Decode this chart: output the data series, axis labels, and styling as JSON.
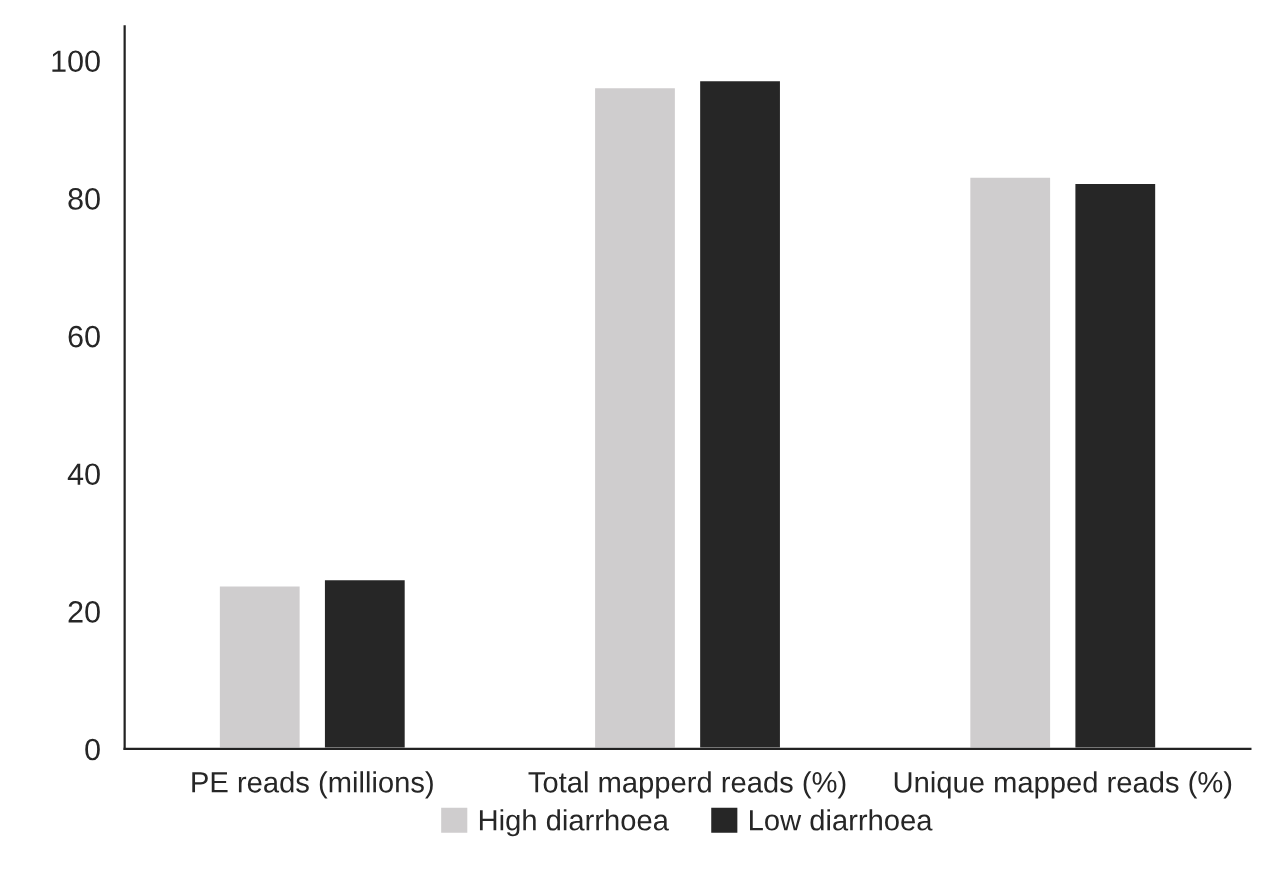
{
  "chart_data": {
    "type": "bar",
    "categories": [
      "PE reads (millions)",
      "Total mapperd reads (%)",
      "Unique mapped reads (%)"
    ],
    "series": [
      {
        "name": "High diarrhoea",
        "color": "#cfcdce",
        "values": [
          23.8,
          96.2,
          83.2
        ]
      },
      {
        "name": "Low diarrhoea",
        "color": "#262626",
        "values": [
          24.7,
          97.2,
          82.3
        ]
      }
    ],
    "ylim": [
      0,
      105
    ],
    "yticks": [
      0,
      20,
      40,
      60,
      80,
      100
    ],
    "grid": false,
    "legend": "bottom"
  }
}
